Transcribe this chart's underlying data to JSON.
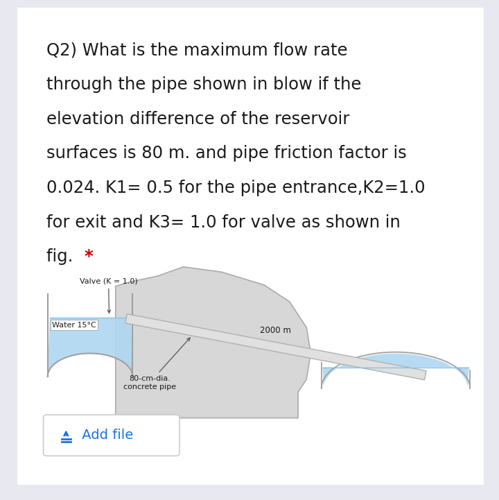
{
  "bg_color": "#e8e8f0",
  "card_color": "#ffffff",
  "title_lines": [
    "Q2) What is the maximum flow rate",
    "through the pipe shown in blow if the",
    "elevation difference of the reservoir",
    "surfaces is 80 m. and pipe friction factor is",
    "0.024. K1= 0.5 for the pipe entrance,K2=1.0",
    "for exit and K3= 1.0 for valve as shown in",
    "fig."
  ],
  "text_color": "#1a1a1a",
  "star_color": "#cc0000",
  "water_color_light": "#aed6f1",
  "water_color_med": "#85c1e9",
  "water_color_dark": "#5dade2",
  "pipe_fill": "#e0e0e0",
  "pipe_edge": "#b0b0b0",
  "terrain_fill": "#d0d0d0",
  "terrain_edge": "#a0a0a0",
  "label_valve": "Valve (K = 1.0)",
  "label_water": "Water 15°C",
  "label_length": "2000 m",
  "label_pipe1": "80-cm-dia.",
  "label_pipe2": "concrete pipe",
  "label_add_file": "Add file",
  "add_file_color": "#1a73e8",
  "font_size_body": 17.5,
  "font_size_diagram": 8,
  "font_size_add_file": 14
}
